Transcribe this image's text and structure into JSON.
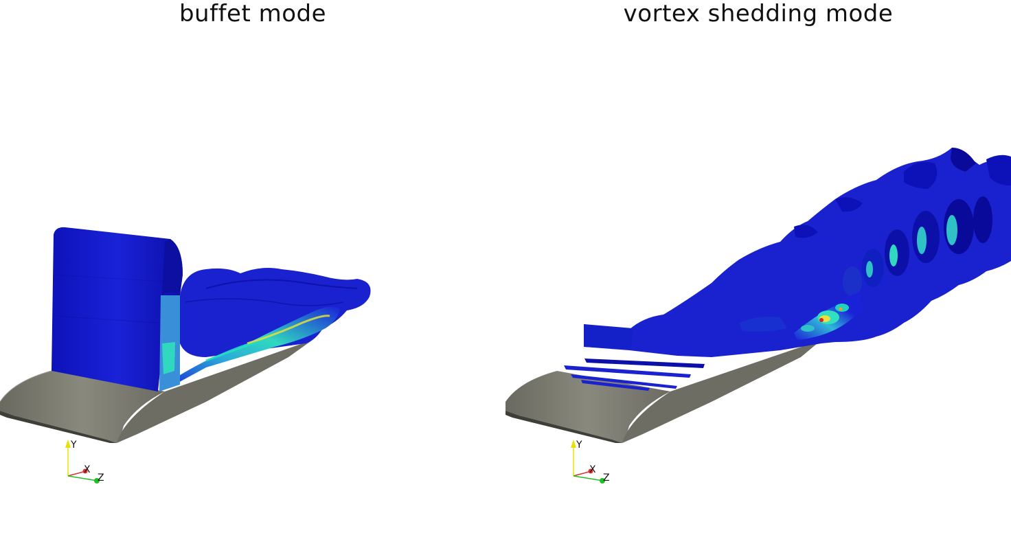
{
  "panels": [
    {
      "title": "buffet mode",
      "axes": {
        "y": "Y",
        "x": "X",
        "z": "Z"
      }
    },
    {
      "title": "vortex shedding mode",
      "axes": {
        "y": "Y",
        "x": "X",
        "z": "Z"
      }
    }
  ],
  "colors": {
    "background": "#ffffff",
    "wing_top": "#86857a",
    "wing_side": "#5d5c54",
    "wing_edge": "#3f3e38",
    "iso_blue_dark": "#0a0a9a",
    "iso_blue": "#1a22d8",
    "iso_light": "#3aa0e0",
    "iso_cyan": "#20e0c0",
    "iso_yellow": "#e8e040",
    "iso_red": "#e02020",
    "axis_y": "#e8e000",
    "axis_x": "#e03030",
    "axis_z": "#20c020"
  }
}
